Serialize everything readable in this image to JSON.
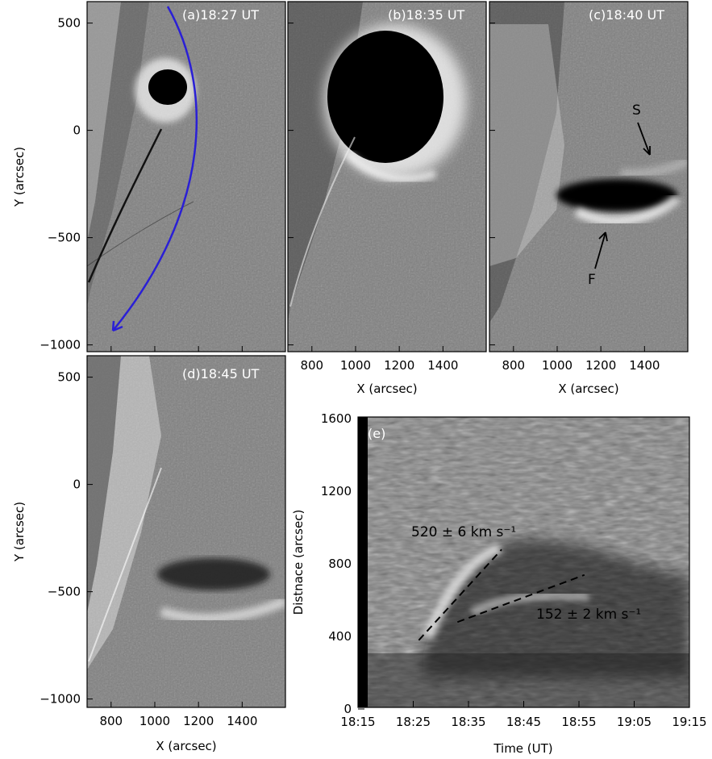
{
  "figure": {
    "panels": [
      {
        "id": "a",
        "label": "(a)18:27 UT"
      },
      {
        "id": "b",
        "label": "(b)18:35 UT"
      },
      {
        "id": "c",
        "label": "(c)18:40 UT"
      },
      {
        "id": "d",
        "label": "(d)18:45 UT"
      },
      {
        "id": "e",
        "label": "(e)"
      }
    ],
    "xlabel": "X (arcsec)",
    "ylabel": "Y (arcsec)",
    "x_ticks": [
      "800",
      "1000",
      "1200",
      "1400"
    ],
    "y_ticks_top": [
      "500",
      "0",
      "−500",
      "−1000"
    ],
    "y_ticks_d": [
      "500",
      "0",
      "−500",
      "−1000"
    ],
    "annotations": {
      "s": "S",
      "f": "F"
    },
    "colors": {
      "path_arc": "#2a1fd6",
      "background": "#7f7f7f",
      "frame": "#000000"
    }
  },
  "chart_data": {
    "type": "heatmap",
    "title": "",
    "xlabel": "Time (UT)",
    "ylabel": "Distnace (arcsec)",
    "x_ticks": [
      "18:15",
      "18:25",
      "18:35",
      "18:45",
      "18:55",
      "19:05",
      "19:15"
    ],
    "y_ticks": [
      "0",
      "400",
      "800",
      "1200",
      "1600"
    ],
    "xlim": [
      "18:15",
      "19:15"
    ],
    "ylim": [
      0,
      1600
    ],
    "fits": [
      {
        "label": "520 ± 6 km s⁻¹",
        "speed": 520,
        "err": 6,
        "unit": "km s⁻¹",
        "t": [
          "18:26",
          "18:41"
        ],
        "d": [
          370,
          870
        ]
      },
      {
        "label": "152 ± 2 km s⁻¹",
        "speed": 152,
        "err": 2,
        "unit": "km s⁻¹",
        "t": [
          "18:33",
          "18:56"
        ],
        "d": [
          470,
          730
        ]
      }
    ]
  }
}
